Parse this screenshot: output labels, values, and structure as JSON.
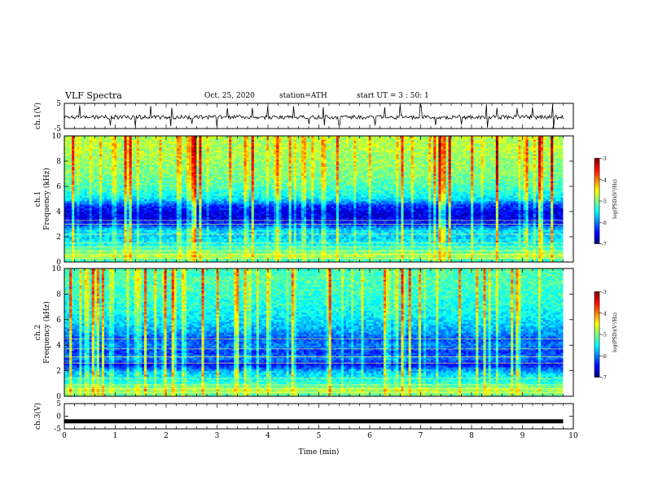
{
  "header": {
    "title": "VLF Spectra",
    "date": "Oct. 25, 2020",
    "station": "station=ATH",
    "start": "start UT =  3 : 50: 1"
  },
  "colors": {
    "jet": [
      "#00007f",
      "#0000ff",
      "#007fff",
      "#00ffff",
      "#7fff7f",
      "#ffff00",
      "#ff7f00",
      "#ff0000",
      "#7f0000"
    ]
  },
  "chart_data": [
    {
      "id": "ch1-waveform",
      "type": "line",
      "ylabel": "ch.1(V)",
      "ylim": [
        -5,
        5
      ],
      "yticks": [
        "5",
        "-5"
      ],
      "x_range": [
        0,
        9.8
      ],
      "baseline": -0.5,
      "spikes_x": [
        0.3,
        0.9,
        1.4,
        1.7,
        2.1,
        2.5,
        3.0,
        3.2,
        3.7,
        4.0,
        4.5,
        4.8,
        5.1,
        5.4,
        6.1,
        6.3,
        6.6,
        7.0,
        7.3,
        7.8,
        8.3,
        8.5,
        8.9,
        9.2,
        9.6
      ]
    },
    {
      "id": "ch1-spectrogram",
      "type": "heatmap",
      "ylabel_top": "ch.1",
      "ylabel": "Frequency (kHz)",
      "ylim": [
        0,
        10
      ],
      "yticks": [
        "0",
        "2",
        "4",
        "6",
        "8",
        "10"
      ],
      "x_range": [
        0,
        9.8
      ],
      "colorbar": {
        "label": "log(PSD)(V²/Hz)",
        "range": [
          -7,
          -3
        ],
        "ticks": [
          "-3",
          "-4",
          "-5",
          "-6",
          "-7"
        ]
      },
      "freq_profile": [
        {
          "f": 0.0,
          "v": -5.4
        },
        {
          "f": 0.5,
          "v": -4.8
        },
        {
          "f": 1.0,
          "v": -5.2
        },
        {
          "f": 1.5,
          "v": -5.5
        },
        {
          "f": 2.0,
          "v": -5.7
        },
        {
          "f": 2.5,
          "v": -5.6
        },
        {
          "f": 3.0,
          "v": -6.3
        },
        {
          "f": 3.5,
          "v": -6.6
        },
        {
          "f": 4.0,
          "v": -6.6
        },
        {
          "f": 4.5,
          "v": -6.3
        },
        {
          "f": 5.0,
          "v": -5.6
        },
        {
          "f": 6.0,
          "v": -5.2
        },
        {
          "f": 7.0,
          "v": -5.0
        },
        {
          "f": 8.0,
          "v": -4.9
        },
        {
          "f": 9.0,
          "v": -4.8
        },
        {
          "f": 10.0,
          "v": -4.8
        }
      ],
      "band_lines_khz": [
        0.3,
        0.6,
        0.9,
        1.2,
        1.5,
        2.2,
        3.0,
        3.3
      ]
    },
    {
      "id": "ch2-spectrogram",
      "type": "heatmap",
      "ylabel_top": "ch.2",
      "ylabel": "Frequency (kHz)",
      "ylim": [
        0,
        10
      ],
      "yticks": [
        "0",
        "2",
        "4",
        "6",
        "8",
        "10"
      ],
      "x_range": [
        0,
        9.8
      ],
      "colorbar": {
        "label": "log(PSD)(V²/Hz)",
        "range": [
          -7,
          -3
        ],
        "ticks": [
          "-3",
          "-4",
          "-5",
          "-6",
          "-7"
        ]
      },
      "freq_profile": [
        {
          "f": 0.0,
          "v": -5.2
        },
        {
          "f": 0.5,
          "v": -4.8
        },
        {
          "f": 1.0,
          "v": -5.3
        },
        {
          "f": 1.5,
          "v": -5.5
        },
        {
          "f": 2.0,
          "v": -5.8
        },
        {
          "f": 2.5,
          "v": -6.5
        },
        {
          "f": 3.0,
          "v": -6.0
        },
        {
          "f": 3.5,
          "v": -6.3
        },
        {
          "f": 4.0,
          "v": -6.0
        },
        {
          "f": 4.5,
          "v": -6.2
        },
        {
          "f": 5.0,
          "v": -5.9
        },
        {
          "f": 6.0,
          "v": -5.6
        },
        {
          "f": 7.0,
          "v": -5.4
        },
        {
          "f": 8.0,
          "v": -5.3
        },
        {
          "f": 9.0,
          "v": -5.2
        },
        {
          "f": 10.0,
          "v": -5.2
        }
      ],
      "band_lines_khz": [
        0.3,
        0.6,
        0.9,
        1.4,
        2.6,
        3.1,
        3.7,
        4.5
      ]
    },
    {
      "id": "ch3-waveform",
      "type": "line",
      "ylabel": "ch.3(V)",
      "ylim": [
        -5,
        5
      ],
      "yticks": [
        "5",
        "0",
        "-5"
      ],
      "x_range": [
        0,
        9.8
      ],
      "baseline": -2.0
    }
  ],
  "x_axis": {
    "label": "Time (min)",
    "xlim": [
      0,
      10
    ],
    "ticks": [
      "0",
      "1",
      "2",
      "3",
      "4",
      "5",
      "6",
      "7",
      "8",
      "9",
      "10"
    ]
  }
}
